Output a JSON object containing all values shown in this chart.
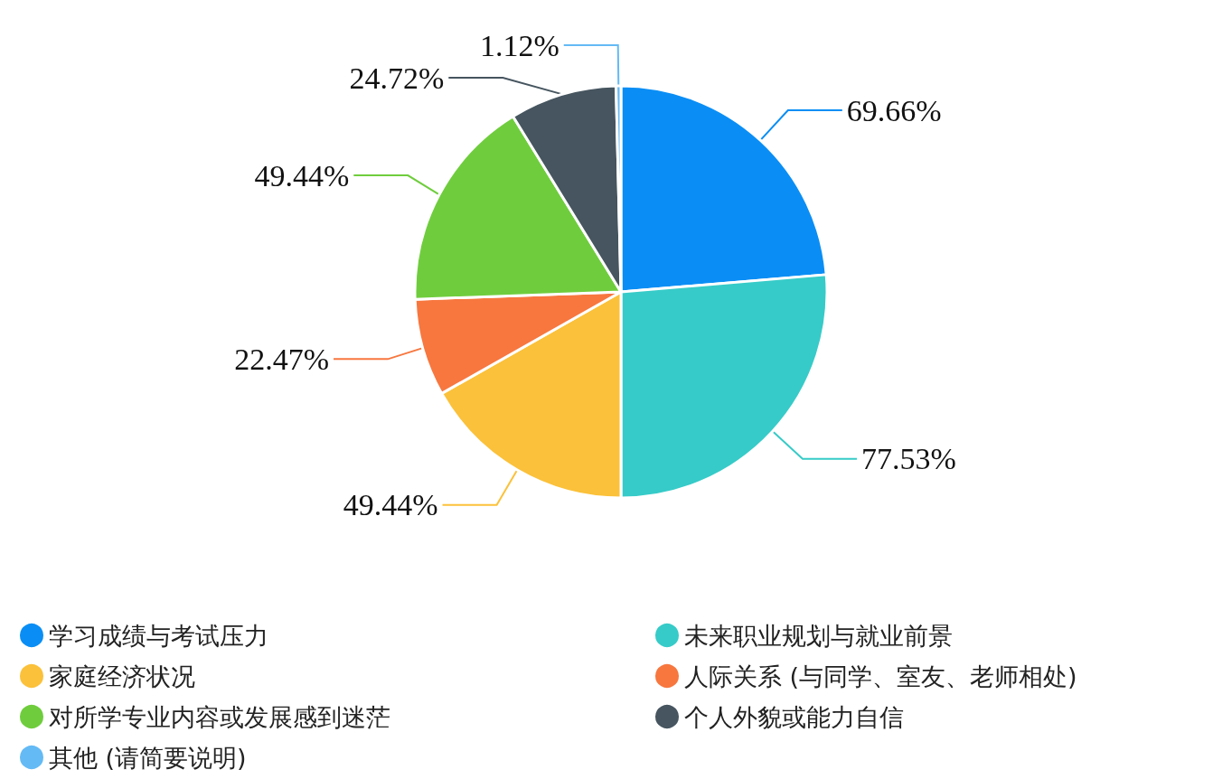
{
  "chart_data": {
    "type": "pie",
    "categories": [
      "学习成绩与考试压力",
      "未来职业规划与就业前景",
      "家庭经济状况",
      "人际关系 (与同学、室友、老师相处)",
      "对所学专业内容或发展感到迷茫",
      "个人外貌或能力自信",
      "其他 (请简要说明)"
    ],
    "values": [
      69.66,
      77.53,
      49.44,
      22.47,
      49.44,
      24.72,
      1.12
    ],
    "colors": [
      "#0a8ef5",
      "#36cbc8",
      "#fbc13a",
      "#f7773f",
      "#6fcd3d",
      "#46555f",
      "#64baf5"
    ],
    "value_labels": [
      "69.66%",
      "77.53%",
      "49.44%",
      "22.47%",
      "49.44%",
      "24.72%",
      "1.12%"
    ],
    "legend": "bottom"
  }
}
